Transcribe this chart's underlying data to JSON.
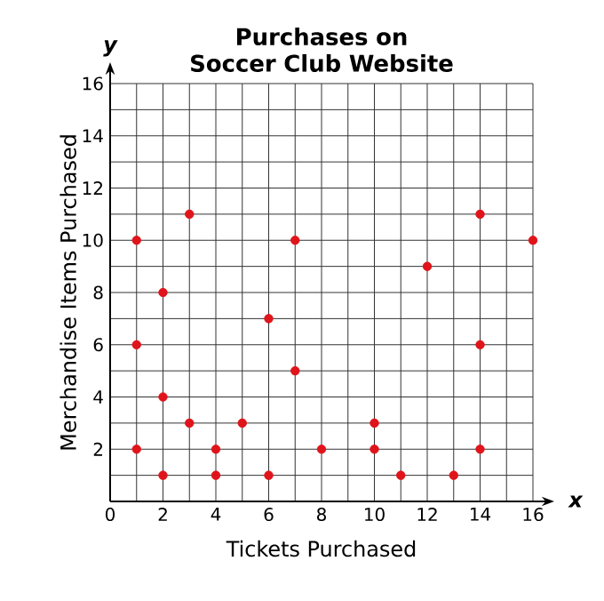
{
  "chart_data": {
    "type": "scatter",
    "title": "Purchases on Soccer Club Website",
    "xlabel": "Tickets Purchased",
    "ylabel": "Merchandise Items Purchased",
    "annotations": [
      "x",
      "y"
    ],
    "x": [
      1,
      1,
      1,
      2,
      2,
      2,
      3,
      3,
      4,
      4,
      5,
      6,
      6,
      7,
      7,
      8,
      10,
      10,
      11,
      12,
      13,
      14,
      14,
      14,
      16
    ],
    "values": [
      10,
      6,
      2,
      8,
      4,
      1,
      11,
      3,
      2,
      1,
      3,
      7,
      1,
      10,
      5,
      2,
      3,
      2,
      1,
      9,
      1,
      11,
      6,
      2,
      10
    ],
    "color": "#e0141b",
    "marker": "circle",
    "grid": true,
    "xlim": [
      0,
      16
    ],
    "ylim": [
      0,
      16
    ],
    "xticks": [
      0,
      2,
      4,
      6,
      8,
      10,
      12,
      14,
      16
    ],
    "yticks": [
      {
        "value": 0,
        "label": null
      },
      2,
      4,
      6,
      8,
      10,
      12,
      14,
      16
    ]
  }
}
